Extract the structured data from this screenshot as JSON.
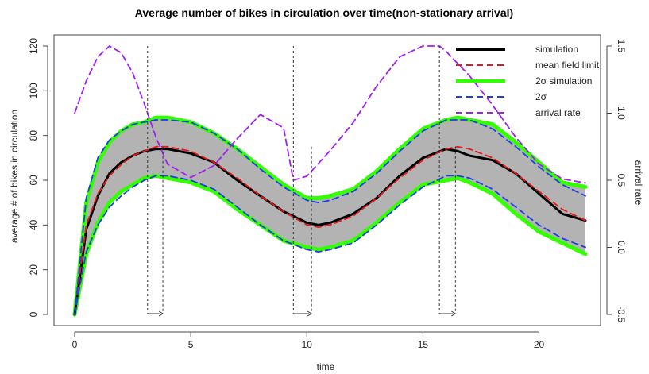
{
  "chart_data": {
    "type": "line",
    "title": "Average number of bikes in circulation over time(non-stationary arrival)",
    "xlabel": "time",
    "ylabel": "average # of bikes in circulation",
    "y2label": "arrival rate",
    "xlim": [
      0,
      22
    ],
    "ylim": [
      0,
      120
    ],
    "y2lim": [
      -0.5,
      1.5
    ],
    "xticks": [
      "0",
      "5",
      "10",
      "15",
      "20"
    ],
    "yticks": [
      "0",
      "20",
      "40",
      "60",
      "80",
      "100",
      "120"
    ],
    "y2ticks": [
      "-0.5",
      "0.0",
      "0.5",
      "1.0",
      "1.5"
    ],
    "legend_position": "top-right",
    "legend": [
      {
        "label": "simulation",
        "color": "#000000",
        "style": "solid-thick"
      },
      {
        "label": "mean field limit",
        "color": "#e41a1c",
        "style": "dashed"
      },
      {
        "label": "2σ simulation",
        "color": "#33ff00",
        "style": "solid-thick"
      },
      {
        "label": "2σ",
        "color": "#1f3fe0",
        "style": "dashed"
      },
      {
        "label": "arrival rate",
        "color": "#a020f0",
        "style": "dashed"
      }
    ],
    "series": [
      {
        "name": "mean field limit",
        "color": "#e41a1c",
        "x": [
          0,
          0.5,
          1,
          1.5,
          2,
          2.5,
          3,
          3.5,
          4,
          5,
          6,
          7,
          8,
          9,
          10,
          10.5,
          11,
          12,
          13,
          14,
          15,
          16,
          16.5,
          17,
          18,
          19,
          20,
          21,
          22
        ],
        "y": [
          0,
          40,
          54,
          62,
          67,
          71,
          73,
          75,
          75,
          73,
          68,
          61,
          53,
          46,
          40,
          39,
          40,
          44,
          52,
          61,
          69,
          74,
          75,
          74,
          70,
          63,
          55,
          47,
          42
        ]
      },
      {
        "name": "simulation",
        "color": "#000000",
        "x": [
          0,
          0.5,
          1,
          1.5,
          2,
          2.5,
          3,
          3.5,
          4,
          5,
          6,
          7,
          8,
          9,
          10,
          10.5,
          11,
          12,
          13,
          14,
          15,
          16,
          16.5,
          17,
          18,
          19,
          20,
          21,
          22
        ],
        "y": [
          0,
          38,
          53,
          63,
          68,
          71,
          73,
          74,
          74,
          72,
          68,
          60,
          53,
          46,
          41,
          40,
          41,
          45,
          52,
          62,
          70,
          74,
          73,
          71,
          69,
          63,
          54,
          45,
          42
        ]
      },
      {
        "name": "2σ simulation upper",
        "color": "#33ff00",
        "x": [
          0,
          0.5,
          1,
          1.5,
          2,
          2.5,
          3,
          3.5,
          4,
          5,
          6,
          7,
          8,
          9,
          10,
          10.5,
          11,
          12,
          13,
          14,
          15,
          16,
          16.5,
          17,
          18,
          19,
          20,
          21,
          22
        ],
        "y": [
          0,
          50,
          68,
          77,
          82,
          85,
          86,
          88,
          88,
          86,
          81,
          74,
          66,
          58,
          52,
          52,
          53,
          56,
          64,
          74,
          83,
          87,
          88,
          87,
          85,
          77,
          68,
          59,
          57
        ]
      },
      {
        "name": "2σ simulation lower",
        "color": "#33ff00",
        "x": [
          0,
          0.5,
          1,
          1.5,
          2,
          2.5,
          3,
          3.5,
          4,
          5,
          6,
          7,
          8,
          9,
          10,
          10.5,
          11,
          12,
          13,
          14,
          15,
          16,
          16.5,
          17,
          18,
          19,
          20,
          21,
          22
        ],
        "y": [
          0,
          27,
          41,
          50,
          55,
          58,
          61,
          62,
          61,
          59,
          55,
          47,
          40,
          33,
          30,
          29,
          30,
          33,
          41,
          50,
          58,
          60,
          61,
          59,
          54,
          45,
          37,
          32,
          27
        ]
      },
      {
        "name": "2σ upper",
        "color": "#1f3fe0",
        "x": [
          0,
          0.5,
          1,
          1.5,
          2,
          2.5,
          3,
          3.5,
          4,
          5,
          6,
          7,
          8,
          9,
          10,
          10.5,
          11,
          12,
          13,
          14,
          15,
          16,
          16.5,
          17,
          18,
          19,
          20,
          21,
          22
        ],
        "y": [
          0,
          52,
          70,
          78,
          82,
          85,
          86,
          87,
          87,
          86,
          81,
          74,
          65,
          57,
          51,
          50,
          51,
          55,
          63,
          73,
          82,
          87,
          87,
          87,
          83,
          75,
          66,
          58,
          53
        ]
      },
      {
        "name": "2σ lower",
        "color": "#1f3fe0",
        "x": [
          0,
          0.5,
          1,
          1.5,
          2,
          2.5,
          3,
          3.5,
          4,
          5,
          6,
          7,
          8,
          9,
          10,
          10.5,
          11,
          12,
          13,
          14,
          15,
          16,
          16.5,
          17,
          18,
          19,
          20,
          21,
          22
        ],
        "y": [
          0,
          28,
          40,
          48,
          53,
          57,
          60,
          62,
          62,
          60,
          56,
          48,
          40,
          33,
          29,
          28,
          29,
          32,
          40,
          49,
          57,
          62,
          62,
          61,
          56,
          48,
          40,
          34,
          30
        ]
      },
      {
        "name": "arrival rate",
        "axis": "right",
        "color": "#a020f0",
        "x": [
          0,
          0.5,
          1,
          1.5,
          2,
          2.5,
          3,
          3.14,
          3.5,
          4,
          5,
          6,
          7,
          8,
          9,
          9.42,
          10,
          11,
          12,
          13,
          14,
          15,
          15.71,
          16,
          17,
          18,
          19,
          20,
          21,
          22
        ],
        "y": [
          1.0,
          1.24,
          1.42,
          1.5,
          1.45,
          1.3,
          1.07,
          1.0,
          0.82,
          0.62,
          0.52,
          0.61,
          0.81,
          0.99,
          0.89,
          0.5,
          0.53,
          0.72,
          0.93,
          1.2,
          1.42,
          1.5,
          1.5,
          1.46,
          1.28,
          1.06,
          0.82,
          0.62,
          0.51,
          0.48
        ]
      }
    ],
    "annotations": [
      {
        "type": "dashed-vertical-arrow",
        "x_start": 3.14,
        "x_end": 3.8
      },
      {
        "type": "dashed-vertical-arrow",
        "x_start": 9.42,
        "x_end": 10.2
      },
      {
        "type": "dashed-vertical-arrow",
        "x_start": 15.71,
        "x_end": 16.4
      }
    ]
  }
}
